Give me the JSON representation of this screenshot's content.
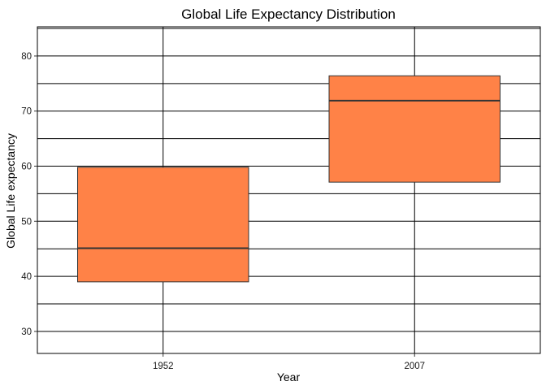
{
  "chart_data": {
    "type": "boxplot",
    "title": "Global Life Expectancy Distribution",
    "xlabel": "Year",
    "ylabel": "Global Life expectancy",
    "categories": [
      "1952",
      "2007"
    ],
    "boxes": [
      {
        "category": "1952",
        "q1": 39.0,
        "median": 45.1,
        "q3": 59.8
      },
      {
        "category": "2007",
        "q1": 57.1,
        "median": 71.9,
        "q3": 76.4
      }
    ],
    "ylim": [
      26,
      85.3
    ],
    "yticks": [
      30,
      40,
      50,
      60,
      70,
      80
    ],
    "grid": true,
    "legend": "none",
    "colors": {
      "box_fill": "#FF8247",
      "box_stroke": "#333333",
      "grid": "#000000",
      "background": "#ffffff"
    }
  }
}
